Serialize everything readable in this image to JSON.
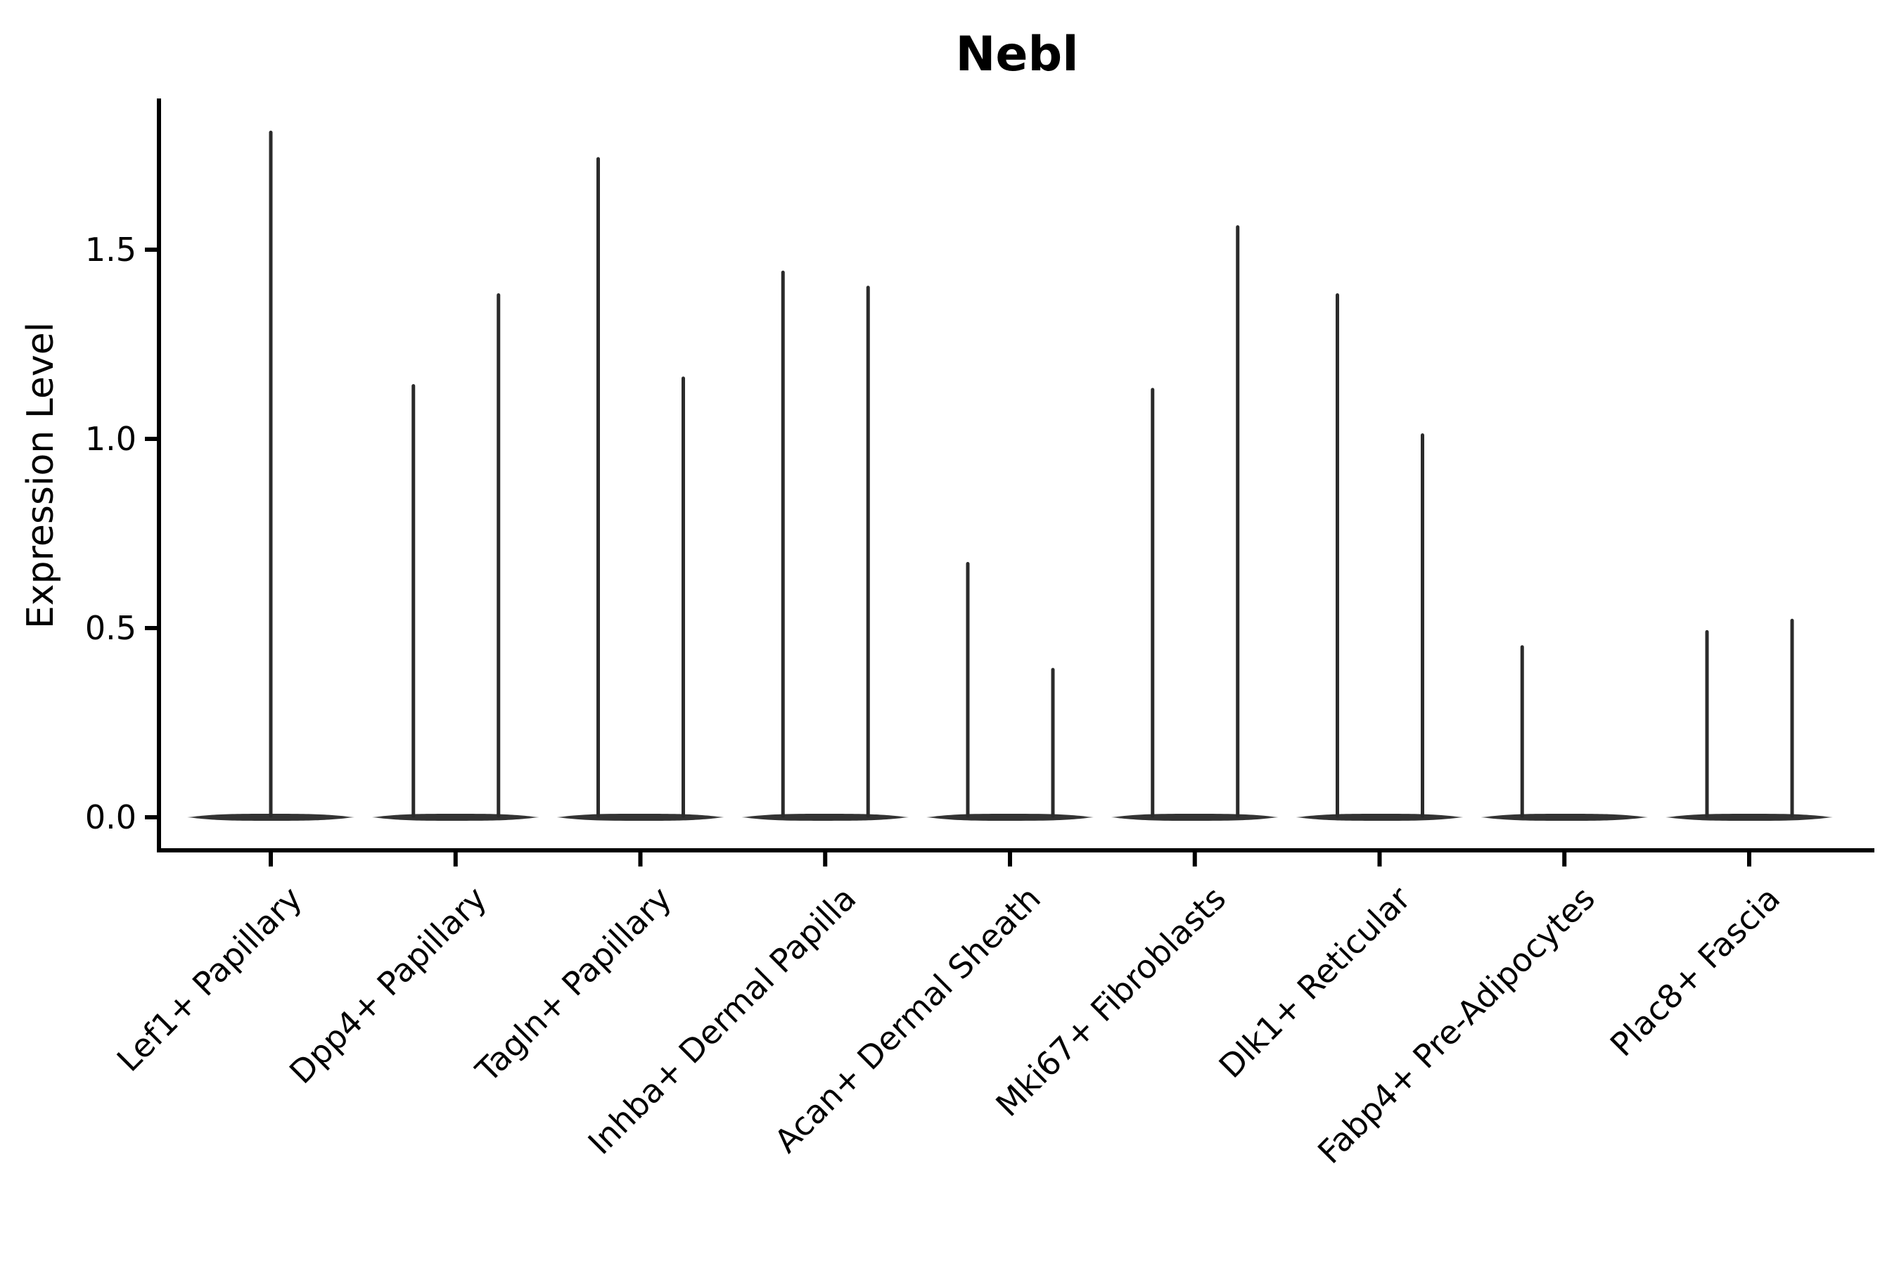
{
  "figure": {
    "title": "Nebl",
    "ylabel": "Expression Level"
  },
  "chart_data": {
    "type": "violin",
    "title": "Nebl",
    "xlabel": "",
    "ylabel": "Expression Level",
    "ytick_labels": [
      "0.0",
      "0.5",
      "1.0",
      "1.5"
    ],
    "ytick_values": [
      0,
      0.5,
      1.0,
      1.5
    ],
    "ylim": [
      -0.09,
      1.9
    ],
    "grid": false,
    "legend": "none",
    "background_color": "#ffffff",
    "violin_color": "#2b2b2b",
    "axis_color": "#000000",
    "baseline_expression": 0,
    "categories": [
      "Lef1+ Papillary",
      "Dpp4+ Papillary",
      "Tagln+ Papillary",
      "Inhba+ Dermal Papilla",
      "Acan+ Dermal Sheath",
      "Mki67+ Fibroblasts",
      "Dlk1+ Reticular",
      "Fabp4+ Pre-Adipocytes",
      "Plac8+ Fascia"
    ],
    "violins": [
      {
        "category": "Lef1+ Papillary",
        "spikes": [
          {
            "position": "center",
            "max": 1.81
          }
        ]
      },
      {
        "category": "Dpp4+ Papillary",
        "spikes": [
          {
            "position": "left",
            "max": 1.14
          },
          {
            "position": "right",
            "max": 1.38
          }
        ]
      },
      {
        "category": "Tagln+ Papillary",
        "spikes": [
          {
            "position": "left",
            "max": 1.74
          },
          {
            "position": "right",
            "max": 1.16
          }
        ]
      },
      {
        "category": "Inhba+ Dermal Papilla",
        "spikes": [
          {
            "position": "left",
            "max": 1.44
          },
          {
            "position": "right",
            "max": 1.4
          }
        ]
      },
      {
        "category": "Acan+ Dermal Sheath",
        "spikes": [
          {
            "position": "left",
            "max": 0.67
          },
          {
            "position": "right",
            "max": 0.39
          }
        ]
      },
      {
        "category": "Mki67+ Fibroblasts",
        "spikes": [
          {
            "position": "left",
            "max": 1.13
          },
          {
            "position": "right",
            "max": 1.56
          }
        ]
      },
      {
        "category": "Dlk1+ Reticular",
        "spikes": [
          {
            "position": "left",
            "max": 1.38
          },
          {
            "position": "right",
            "max": 1.01
          }
        ]
      },
      {
        "category": "Fabp4+ Pre-Adipocytes",
        "spikes": [
          {
            "position": "left",
            "max": 0.45
          }
        ]
      },
      {
        "category": "Plac8+ Fascia",
        "spikes": [
          {
            "position": "left",
            "max": 0.49
          },
          {
            "position": "right",
            "max": 0.52
          }
        ]
      }
    ]
  }
}
